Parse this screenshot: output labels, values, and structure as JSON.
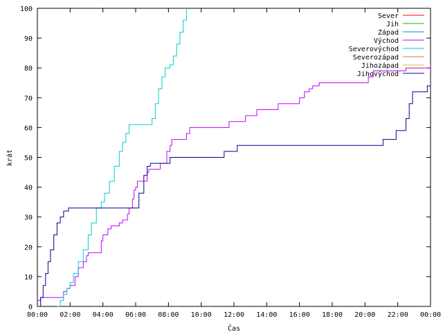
{
  "chart_data": {
    "type": "line",
    "xlabel": "Čas",
    "ylabel": "krát",
    "xlim": [
      0,
      24
    ],
    "ylim": [
      0,
      100
    ],
    "xticks": [
      {
        "t": 0,
        "label": "00:00"
      },
      {
        "t": 2,
        "label": "02:00"
      },
      {
        "t": 4,
        "label": "04:00"
      },
      {
        "t": 6,
        "label": "06:00"
      },
      {
        "t": 8,
        "label": "08:00"
      },
      {
        "t": 10,
        "label": "10:00"
      },
      {
        "t": 12,
        "label": "12:00"
      },
      {
        "t": 14,
        "label": "14:00"
      },
      {
        "t": 16,
        "label": "16:00"
      },
      {
        "t": 18,
        "label": "18:00"
      },
      {
        "t": 20,
        "label": "20:00"
      },
      {
        "t": 22,
        "label": "22:00"
      },
      {
        "t": 24,
        "label": "00:00"
      }
    ],
    "yticks": [
      0,
      10,
      20,
      30,
      40,
      50,
      60,
      70,
      80,
      90,
      100
    ],
    "legend_position": "top-right",
    "series": [
      {
        "name": "Sever",
        "color": "#ff0000",
        "points": []
      },
      {
        "name": "Jih",
        "color": "#00c000",
        "points": []
      },
      {
        "name": "Západ",
        "color": "#0080ff",
        "points": []
      },
      {
        "name": "Východ",
        "color": "#c000ff",
        "points": [
          [
            0.0,
            2
          ],
          [
            0.2,
            3
          ],
          [
            1.6,
            3
          ],
          [
            1.6,
            5
          ],
          [
            1.8,
            6
          ],
          [
            2.0,
            7
          ],
          [
            2.3,
            10
          ],
          [
            2.5,
            13
          ],
          [
            2.8,
            15
          ],
          [
            3.0,
            17
          ],
          [
            3.1,
            18
          ],
          [
            3.8,
            18
          ],
          [
            3.9,
            22
          ],
          [
            4.0,
            24
          ],
          [
            4.3,
            26
          ],
          [
            4.5,
            27
          ],
          [
            5.0,
            28
          ],
          [
            5.2,
            29
          ],
          [
            5.5,
            31
          ],
          [
            5.6,
            33
          ],
          [
            5.8,
            36
          ],
          [
            5.9,
            39
          ],
          [
            6.0,
            40
          ],
          [
            6.1,
            42
          ],
          [
            6.5,
            42
          ],
          [
            6.7,
            45
          ],
          [
            6.8,
            46
          ],
          [
            7.4,
            46
          ],
          [
            7.5,
            48
          ],
          [
            7.8,
            48
          ],
          [
            7.9,
            52
          ],
          [
            8.1,
            54
          ],
          [
            8.2,
            56
          ],
          [
            9.0,
            56
          ],
          [
            9.1,
            58
          ],
          [
            9.3,
            60
          ],
          [
            11.5,
            60
          ],
          [
            11.7,
            62
          ],
          [
            12.5,
            62
          ],
          [
            12.7,
            64
          ],
          [
            13.2,
            64
          ],
          [
            13.4,
            66
          ],
          [
            14.5,
            66
          ],
          [
            14.7,
            68
          ],
          [
            15.8,
            68
          ],
          [
            16.0,
            70
          ],
          [
            16.3,
            72
          ],
          [
            16.6,
            73
          ],
          [
            16.8,
            74
          ],
          [
            17.2,
            75
          ],
          [
            19.9,
            75
          ],
          [
            20.2,
            77
          ],
          [
            20.5,
            79
          ],
          [
            21.7,
            79
          ],
          [
            22.5,
            80
          ],
          [
            24.0,
            81
          ]
        ]
      },
      {
        "name": "Severovýchod",
        "color": "#00cccc",
        "points": [
          [
            1.2,
            0
          ],
          [
            1.4,
            2
          ],
          [
            1.6,
            4
          ],
          [
            1.8,
            6
          ],
          [
            2.0,
            8
          ],
          [
            2.2,
            11
          ],
          [
            2.5,
            15
          ],
          [
            2.8,
            19
          ],
          [
            3.1,
            24
          ],
          [
            3.3,
            28
          ],
          [
            3.6,
            33
          ],
          [
            3.9,
            35
          ],
          [
            4.1,
            38
          ],
          [
            4.4,
            42
          ],
          [
            4.7,
            47
          ],
          [
            5.0,
            52
          ],
          [
            5.2,
            55
          ],
          [
            5.4,
            58
          ],
          [
            5.6,
            61
          ],
          [
            6.9,
            61
          ],
          [
            7.0,
            63
          ],
          [
            7.2,
            68
          ],
          [
            7.4,
            73
          ],
          [
            7.6,
            77
          ],
          [
            7.8,
            80
          ],
          [
            8.1,
            81
          ],
          [
            8.3,
            84
          ],
          [
            8.5,
            88
          ],
          [
            8.7,
            92
          ],
          [
            8.9,
            96
          ],
          [
            9.1,
            100
          ]
        ]
      },
      {
        "name": "Severozápad",
        "color": "#c08040",
        "points": []
      },
      {
        "name": "Jihozápad",
        "color": "#d0d000",
        "points": []
      },
      {
        "name": "Jihovýchod",
        "color": "#00008b",
        "points": [
          [
            0.0,
            0
          ],
          [
            0.2,
            3
          ],
          [
            0.35,
            7
          ],
          [
            0.5,
            11
          ],
          [
            0.65,
            15
          ],
          [
            0.8,
            19
          ],
          [
            1.0,
            24
          ],
          [
            1.2,
            28
          ],
          [
            1.4,
            30
          ],
          [
            1.6,
            32
          ],
          [
            1.9,
            33
          ],
          [
            6.0,
            33
          ],
          [
            6.2,
            38
          ],
          [
            6.5,
            44
          ],
          [
            6.7,
            47
          ],
          [
            6.9,
            48
          ],
          [
            8.0,
            48
          ],
          [
            8.1,
            50
          ],
          [
            11.3,
            50
          ],
          [
            11.4,
            52
          ],
          [
            12.1,
            52
          ],
          [
            12.2,
            54
          ],
          [
            21.0,
            54
          ],
          [
            21.1,
            56
          ],
          [
            21.6,
            56
          ],
          [
            21.9,
            59
          ],
          [
            22.3,
            59
          ],
          [
            22.5,
            63
          ],
          [
            22.7,
            68
          ],
          [
            22.9,
            72
          ],
          [
            23.6,
            72
          ],
          [
            23.8,
            74
          ],
          [
            24.0,
            75
          ]
        ]
      }
    ]
  }
}
